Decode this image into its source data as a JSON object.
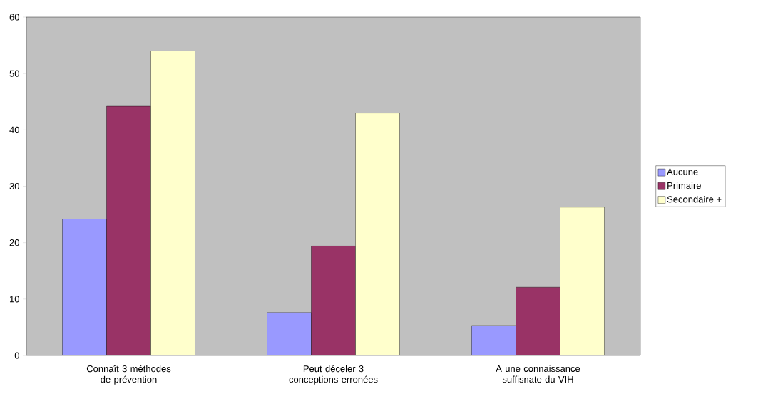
{
  "chart_data": {
    "type": "bar",
    "categories": [
      "Connaît 3 méthodes de prévention",
      "Peut déceler 3 conceptions erronées",
      "A une connaissance suffisnate du VIH"
    ],
    "series": [
      {
        "name": "Aucune",
        "color": "#9999ff",
        "values": [
          24.2,
          7.6,
          5.3
        ]
      },
      {
        "name": "Primaire",
        "color": "#993366",
        "values": [
          44.2,
          19.4,
          12.1
        ]
      },
      {
        "name": "Secondaire +",
        "color": "#ffffcc",
        "values": [
          54.0,
          43.0,
          26.3
        ]
      }
    ],
    "ylim": [
      0,
      60
    ],
    "yticks": [
      0,
      10,
      20,
      30,
      40,
      50,
      60
    ],
    "grid": false,
    "legend": "right"
  }
}
